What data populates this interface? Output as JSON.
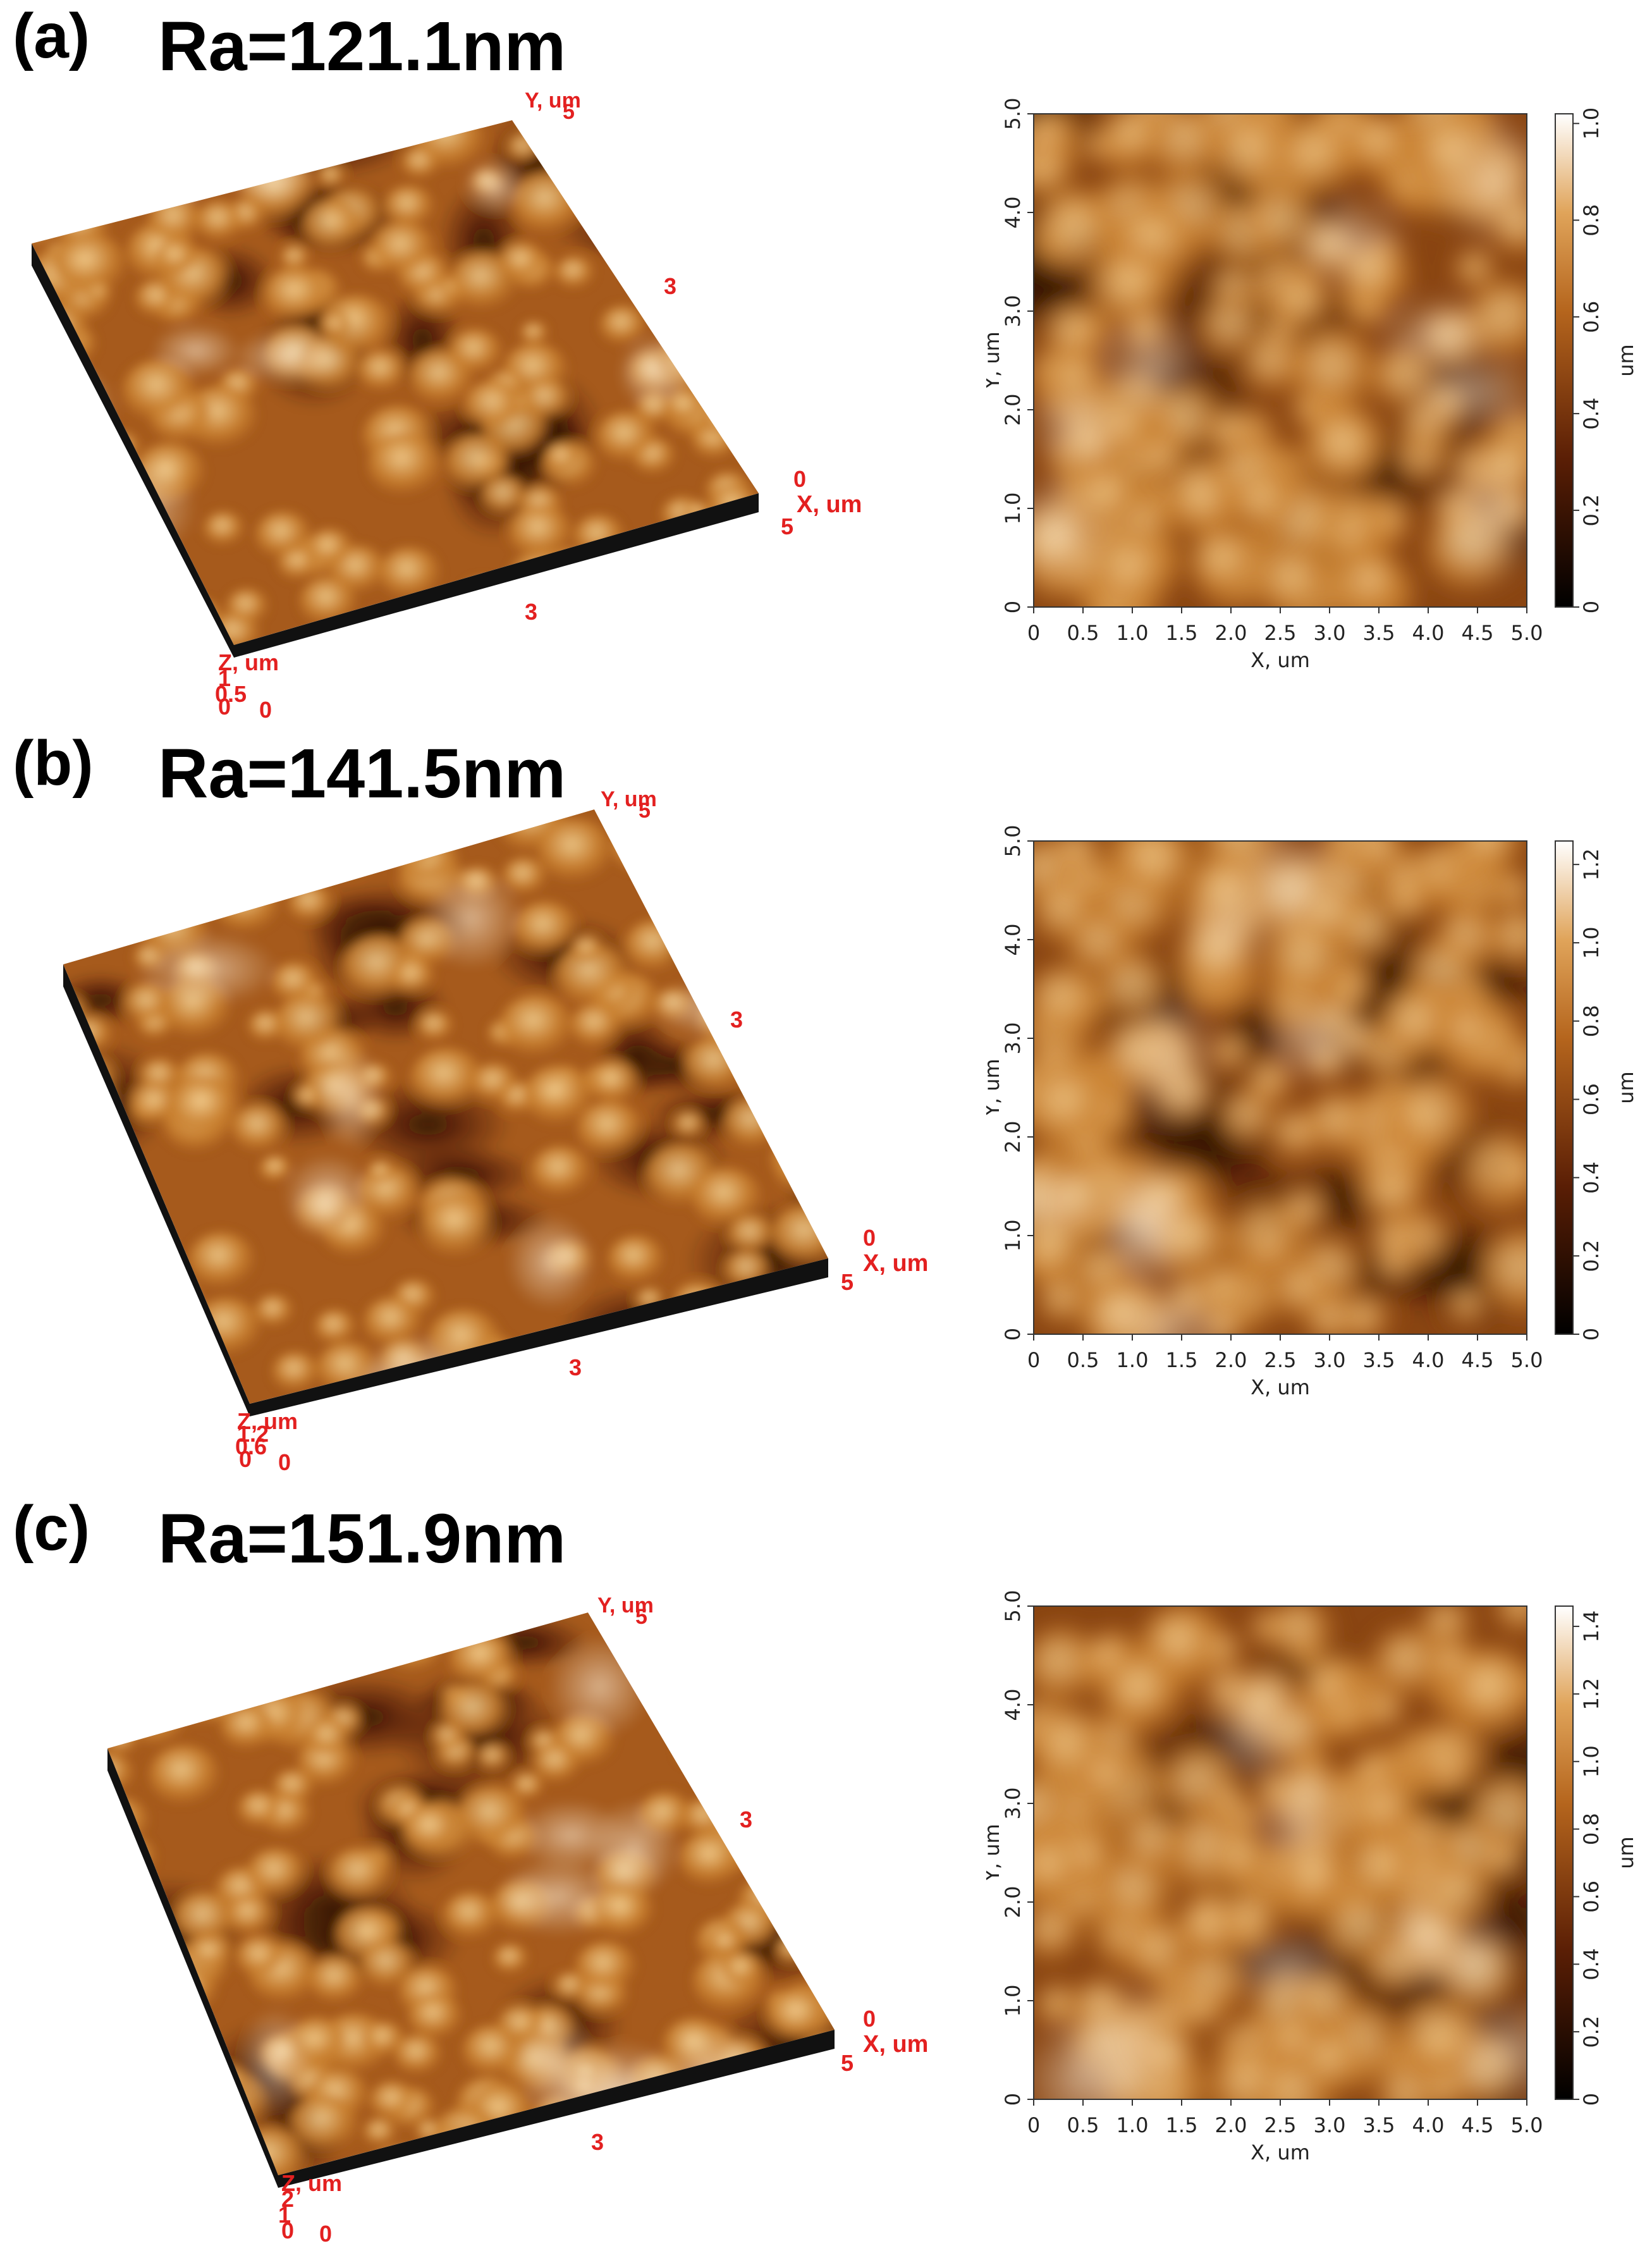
{
  "panels": [
    {
      "letter": "(a)",
      "ra": "Ra=121.1nm",
      "view3d": {
        "y_label": "Y, um",
        "y_max": "5",
        "y_mid": "3",
        "x_label": "X, um",
        "x_zero": "0",
        "x_max": "5",
        "x_mid": "3",
        "z_label": "Z, um",
        "z_ticks": [
          "1",
          "0.5",
          "0"
        ],
        "origin": "0"
      },
      "map": {
        "xlabel": "X, um",
        "ylabel": "Y, um",
        "xticks": [
          "0",
          "0.5",
          "1.0",
          "1.5",
          "2.0",
          "2.5",
          "3.0",
          "3.5",
          "4.0",
          "4.5",
          "5.0"
        ],
        "yticks": [
          "0",
          "1.0",
          "2.0",
          "3.0",
          "4.0",
          "5.0"
        ],
        "colorbar_ticks": [
          "0",
          "0.2",
          "0.4",
          "0.6",
          "0.8",
          "1.0"
        ],
        "colorbar_unit": "um"
      }
    },
    {
      "letter": "(b)",
      "ra": "Ra=141.5nm",
      "view3d": {
        "y_label": "Y, um",
        "y_max": "5",
        "y_mid": "3",
        "x_label": "X, um",
        "x_zero": "0",
        "x_max": "5",
        "x_mid": "3",
        "z_label": "Z, um",
        "z_ticks": [
          "1.2",
          "0.6",
          "0"
        ],
        "origin": "0"
      },
      "map": {
        "xlabel": "X, um",
        "ylabel": "Y, um",
        "xticks": [
          "0",
          "0.5",
          "1.0",
          "1.5",
          "2.0",
          "2.5",
          "3.0",
          "3.5",
          "4.0",
          "4.5",
          "5.0"
        ],
        "yticks": [
          "0",
          "1.0",
          "2.0",
          "3.0",
          "4.0",
          "5.0"
        ],
        "colorbar_ticks": [
          "0",
          "0.2",
          "0.4",
          "0.6",
          "0.8",
          "1.0",
          "1.2"
        ],
        "colorbar_unit": "um"
      }
    },
    {
      "letter": "(c)",
      "ra": "Ra=151.9nm",
      "view3d": {
        "y_label": "Y, um",
        "y_max": "5",
        "y_mid": "3",
        "x_label": "X, um",
        "x_zero": "0",
        "x_max": "5",
        "x_mid": "3",
        "z_label": "Z, um",
        "z_ticks": [
          "2",
          "1",
          "0"
        ],
        "origin": "0"
      },
      "map": {
        "xlabel": "X, um",
        "ylabel": "Y, um",
        "xticks": [
          "0",
          "0.5",
          "1.0",
          "1.5",
          "2.0",
          "2.5",
          "3.0",
          "3.5",
          "4.0",
          "4.5",
          "5.0"
        ],
        "yticks": [
          "0",
          "1.0",
          "2.0",
          "3.0",
          "4.0",
          "5.0"
        ],
        "colorbar_ticks": [
          "0",
          "0.2",
          "0.4",
          "0.6",
          "0.8",
          "1.0",
          "1.2",
          "1.4"
        ],
        "colorbar_unit": "um"
      }
    }
  ],
  "colors": {
    "afm_dark": "#1a0800",
    "afm_mid": "#b5651d",
    "afm_light": "#fff3de",
    "axis_label_red": "#e32020"
  }
}
